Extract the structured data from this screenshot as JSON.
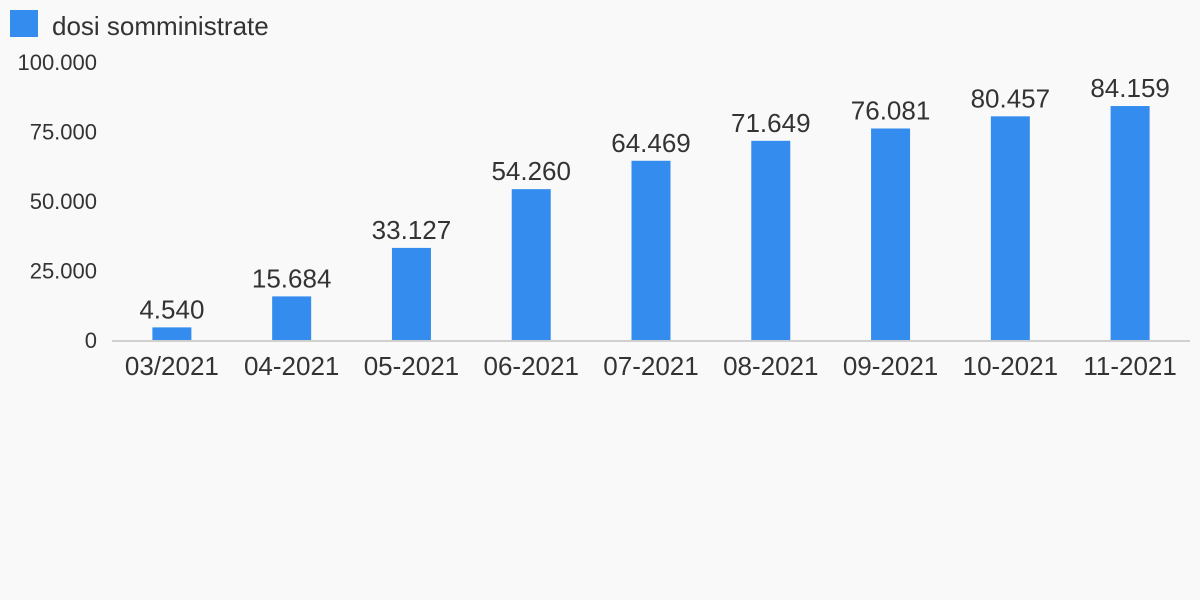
{
  "legend": {
    "label": "dosi somministrate",
    "color": "#348cef"
  },
  "chart_data": {
    "type": "bar",
    "title": "",
    "xlabel": "",
    "ylabel": "",
    "categories": [
      "03/2021",
      "04-2021",
      "05-2021",
      "06-2021",
      "07-2021",
      "08-2021",
      "09-2021",
      "10-2021",
      "11-2021"
    ],
    "series": [
      {
        "name": "dosi somministrate",
        "values": [
          4540,
          15684,
          33127,
          54260,
          64469,
          71649,
          76081,
          80457,
          84159
        ],
        "value_labels": [
          "4.540",
          "15.684",
          "33.127",
          "54.260",
          "64.469",
          "71.649",
          "76.081",
          "80.457",
          "84.159"
        ]
      }
    ],
    "ylim": [
      0,
      100000
    ],
    "yticks": [
      0,
      25000,
      50000,
      75000,
      100000
    ],
    "ytick_labels": [
      "0",
      "25.000",
      "50.000",
      "75.000",
      "100.000"
    ],
    "grid": false,
    "legend_position": "top-left",
    "bar_color": "#348cef",
    "axis_color": "#d0d0d0"
  }
}
